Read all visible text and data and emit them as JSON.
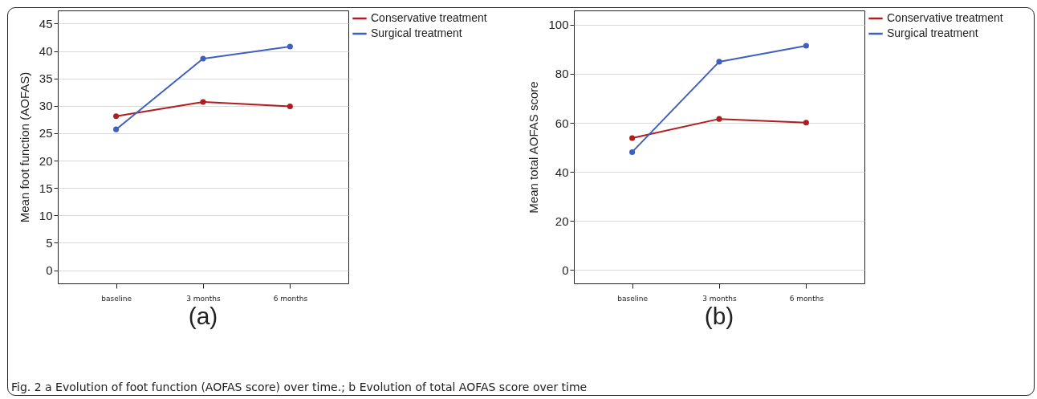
{
  "chart_data": [
    {
      "type": "line",
      "ylabel": "Mean foot function (AOFAS)",
      "categories": [
        "baseline",
        "3 months",
        "6 months"
      ],
      "series": [
        {
          "name": "Conservative treatment",
          "color": "#b01c20",
          "values": [
            28.1,
            30.7,
            29.9
          ]
        },
        {
          "name": "Surgical treatment",
          "color": "#3f5fbf",
          "values": [
            25.7,
            38.6,
            40.8
          ]
        }
      ],
      "ylim": [
        -2.4,
        47.4
      ],
      "yticks": [
        0,
        5,
        10,
        15,
        20,
        25,
        30,
        35,
        40,
        45
      ],
      "grid": "y",
      "legend": "top right",
      "marker": "circle",
      "annotations": [
        "(a)",
        "Fig. 2 a Evolution of foot function (AOFAS score) over time.; b Evolution of total AOFAS score over time"
      ]
    },
    {
      "type": "line",
      "ylabel": "Mean total AOFAS score",
      "categories": [
        "baseline",
        "3 months",
        "6 months"
      ],
      "series": [
        {
          "name": "Conservative treatment",
          "color": "#b01c20",
          "values": [
            53.8,
            61.6,
            60.1
          ]
        },
        {
          "name": "Surgical treatment",
          "color": "#3f5fbf",
          "values": [
            48.1,
            84.9,
            91.4
          ]
        }
      ],
      "ylim": [
        -5.4,
        105.8
      ],
      "yticks": [
        0,
        20,
        40,
        60,
        80,
        100
      ],
      "grid": "y",
      "legend": "top right",
      "marker": "circle",
      "annotations": [
        "(b)"
      ]
    }
  ]
}
